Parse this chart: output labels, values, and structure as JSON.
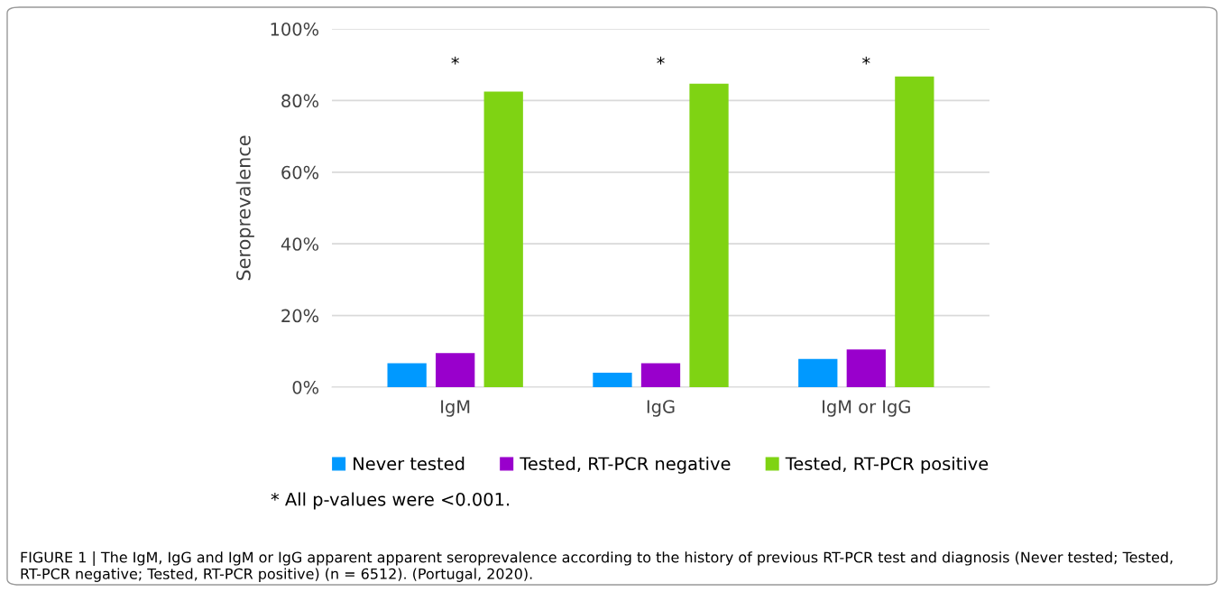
{
  "chart_data": {
    "type": "bar",
    "ylabel": "Seroprevalence",
    "categories": [
      "IgM",
      "IgG",
      "IgM or IgG"
    ],
    "series": [
      {
        "name": "Never tested",
        "color": "#0099ff",
        "values": [
          6.7,
          4.0,
          7.9
        ]
      },
      {
        "name": "Tested, RT-PCR negative",
        "color": "#9900cc",
        "values": [
          9.5,
          6.7,
          10.5
        ]
      },
      {
        "name": "Tested, RT-PCR positive",
        "color": "#7fd313",
        "values": [
          82.5,
          84.7,
          86.7
        ]
      }
    ],
    "ylim": [
      0,
      100
    ],
    "yticks": [
      {
        "value": 0,
        "label": "0%"
      },
      {
        "value": 20,
        "label": "20%"
      },
      {
        "value": 40,
        "label": "40%"
      },
      {
        "value": 60,
        "label": "60%"
      },
      {
        "value": 80,
        "label": "80%"
      },
      {
        "value": 100,
        "label": "100%"
      }
    ],
    "grid": "y",
    "legend": "bottom",
    "annotations": [
      "*",
      "*",
      "*",
      "* All p-values were <0.001.",
      "FIGURE 1 | The IgM, IgG and IgM or IgG apparent apparent seroprevalence according to the history of previous RT-PCR test and diagnosis (Never tested; Tested, RT-PCR negative; Tested, RT-PCR positive) (n = 6512). (Portugal, 2020)."
    ]
  }
}
